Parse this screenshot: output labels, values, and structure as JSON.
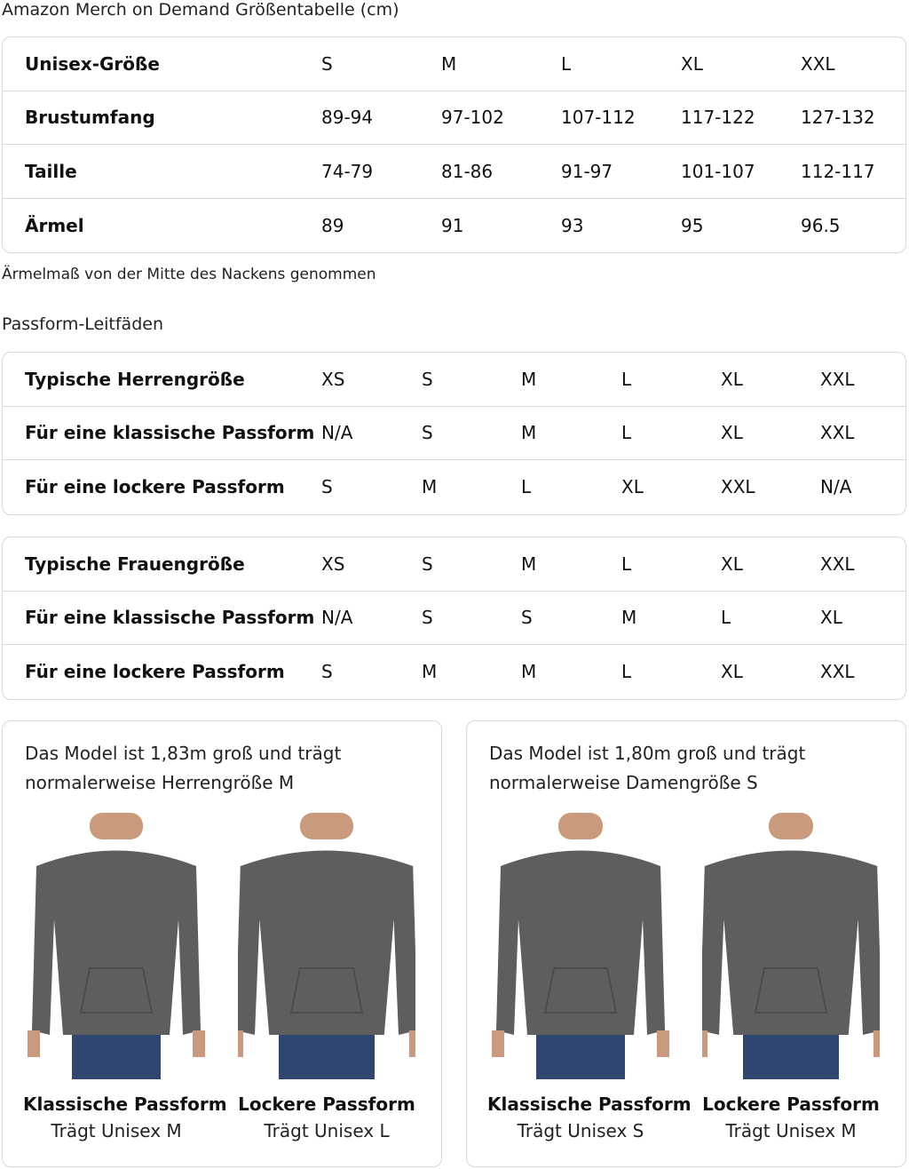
{
  "title": "Amazon Merch on Demand Größentabelle (cm)",
  "size_table": {
    "rows": [
      {
        "label": "Unisex-Größe",
        "values": [
          "S",
          "M",
          "L",
          "XL",
          "XXL"
        ]
      },
      {
        "label": "Brustumfang",
        "values": [
          "89-94",
          "97-102",
          "107-112",
          "117-122",
          "127-132"
        ]
      },
      {
        "label": "Taille",
        "values": [
          "74-79",
          "81-86",
          "91-97",
          "101-107",
          "112-117"
        ]
      },
      {
        "label": "Ärmel",
        "values": [
          "89",
          "91",
          "93",
          "95",
          "96.5"
        ]
      }
    ]
  },
  "note": "Ärmelmaß von der Mitte des Nackens genommen",
  "fit_title": "Passform-Leitfäden",
  "men_table": {
    "rows": [
      {
        "label": "Typische Herrengröße",
        "values": [
          "XS",
          "S",
          "M",
          "L",
          "XL",
          "XXL"
        ]
      },
      {
        "label": "Für eine klassische Passform",
        "values": [
          "N/A",
          "S",
          "M",
          "L",
          "XL",
          "XXL"
        ]
      },
      {
        "label": "Für eine lockere Passform",
        "values": [
          "S",
          "M",
          "L",
          "XL",
          "XXL",
          "N/A"
        ]
      }
    ]
  },
  "women_table": {
    "rows": [
      {
        "label": "Typische Frauengröße",
        "values": [
          "XS",
          "S",
          "M",
          "L",
          "XL",
          "XXL"
        ]
      },
      {
        "label": "Für eine klassische Passform",
        "values": [
          "N/A",
          "S",
          "S",
          "M",
          "L",
          "XL"
        ]
      },
      {
        "label": "Für eine lockere Passform",
        "values": [
          "S",
          "M",
          "M",
          "L",
          "XL",
          "XXL"
        ]
      }
    ]
  },
  "cards": [
    {
      "desc": "Das Model ist 1,83m groß und trägt normalerweise Herrengröße M",
      "figures": [
        {
          "caption": "Klassische Passform",
          "sub": "Trägt Unisex M"
        },
        {
          "caption": "Lockere Passform",
          "sub": "Trägt Unisex L"
        }
      ]
    },
    {
      "desc": "Das Model ist 1,80m groß und trägt normalerweise Damengröße S",
      "figures": [
        {
          "caption": "Klassische Passform",
          "sub": "Trägt Unisex S"
        },
        {
          "caption": "Lockere Passform",
          "sub": "Trägt Unisex M"
        }
      ]
    }
  ],
  "colors": {
    "hoodie": "#5e5e5e",
    "jeans": "#2f4770",
    "skin": "#c99a7c",
    "border": "#d5d9d9"
  }
}
